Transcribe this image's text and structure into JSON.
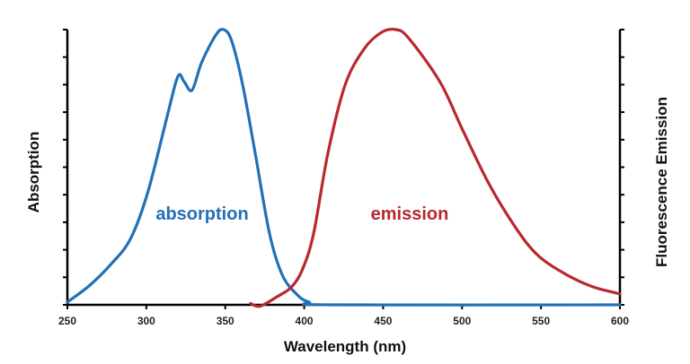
{
  "chart_data": {
    "type": "line",
    "title": "",
    "xlabel": "Wavelength (nm)",
    "ylabel_left": "Absorption",
    "ylabel_right": "Fluorescence Emission",
    "xlim": [
      250,
      600
    ],
    "ylim": [
      0,
      1
    ],
    "x_ticks": [
      250,
      300,
      350,
      400,
      450,
      500,
      550,
      600
    ],
    "y_tick_count": 10,
    "grid": false,
    "legend": "inline annotations",
    "series": [
      {
        "name": "absorption",
        "color": "#2270b5",
        "points": [
          [
            250,
            0.01
          ],
          [
            264,
            0.07
          ],
          [
            278,
            0.15
          ],
          [
            290,
            0.24
          ],
          [
            301,
            0.41
          ],
          [
            313,
            0.68
          ],
          [
            320,
            0.83
          ],
          [
            324,
            0.81
          ],
          [
            329,
            0.78
          ],
          [
            335,
            0.88
          ],
          [
            344,
            0.98
          ],
          [
            349,
            1.0
          ],
          [
            354,
            0.96
          ],
          [
            361,
            0.8
          ],
          [
            369,
            0.55
          ],
          [
            378,
            0.26
          ],
          [
            386,
            0.11
          ],
          [
            395,
            0.04
          ],
          [
            403,
            0.01
          ],
          [
            418,
            0.0
          ],
          [
            600,
            0.0
          ]
        ]
      },
      {
        "name": "emission",
        "color": "#b8282f",
        "points": [
          [
            366,
            0.005
          ],
          [
            372,
            -0.005
          ],
          [
            383,
            0.03
          ],
          [
            392,
            0.065
          ],
          [
            399,
            0.13
          ],
          [
            406,
            0.26
          ],
          [
            415,
            0.55
          ],
          [
            426,
            0.8
          ],
          [
            438,
            0.93
          ],
          [
            449,
            0.99
          ],
          [
            458,
            1.0
          ],
          [
            466,
            0.97
          ],
          [
            486,
            0.81
          ],
          [
            500,
            0.64
          ],
          [
            517,
            0.44
          ],
          [
            534,
            0.28
          ],
          [
            548,
            0.18
          ],
          [
            566,
            0.11
          ],
          [
            583,
            0.065
          ],
          [
            600,
            0.04
          ]
        ]
      }
    ]
  }
}
